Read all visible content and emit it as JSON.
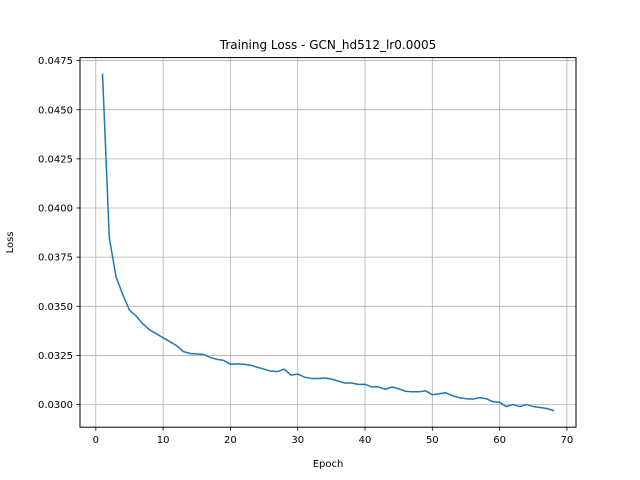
{
  "chart_data": {
    "type": "line",
    "title": "Training Loss - GCN_hd512_lr0.0005",
    "xlabel": "Epoch",
    "ylabel": "Loss",
    "xlim": [
      -2.35,
      71.35
    ],
    "ylim": [
      0.02885,
      0.04765
    ],
    "xticks": [
      0,
      10,
      20,
      30,
      40,
      50,
      60,
      70
    ],
    "xtick_labels": [
      "0",
      "10",
      "20",
      "30",
      "40",
      "50",
      "60",
      "70"
    ],
    "yticks": [
      0.03,
      0.0325,
      0.035,
      0.0375,
      0.04,
      0.0425,
      0.045,
      0.0475
    ],
    "ytick_labels": [
      "0.0300",
      "0.0325",
      "0.0350",
      "0.0375",
      "0.0400",
      "0.0425",
      "0.0450",
      "0.0475"
    ],
    "grid": true,
    "line_color": "#1f77b4",
    "series": [
      {
        "x": [
          1,
          2,
          3,
          4,
          5,
          6,
          7,
          8,
          9,
          10,
          11,
          12,
          13,
          14,
          15,
          16,
          17,
          18,
          19,
          20,
          21,
          22,
          23,
          24,
          25,
          26,
          27,
          28,
          29,
          30,
          31,
          32,
          33,
          34,
          35,
          36,
          37,
          38,
          39,
          40,
          41,
          42,
          43,
          44,
          45,
          46,
          47,
          48,
          49,
          50,
          51,
          52,
          53,
          54,
          55,
          56,
          57,
          58,
          59,
          60,
          61,
          62,
          63,
          64,
          65,
          66,
          67,
          68
        ],
        "values": [
          0.0468,
          0.0385,
          0.0365,
          0.0356,
          0.0348,
          0.0345,
          0.0341,
          0.0338,
          0.0336,
          0.0334,
          0.0332,
          0.033,
          0.0327,
          0.0326,
          0.03258,
          0.03255,
          0.0324,
          0.0323,
          0.03225,
          0.03205,
          0.03207,
          0.03205,
          0.032,
          0.0319,
          0.0318,
          0.0317,
          0.03168,
          0.0318,
          0.0315,
          0.03155,
          0.0314,
          0.03133,
          0.03133,
          0.03135,
          0.0313,
          0.0312,
          0.0311,
          0.0311,
          0.03103,
          0.03103,
          0.0309,
          0.0309,
          0.03078,
          0.0309,
          0.0308,
          0.03068,
          0.03065,
          0.03065,
          0.0307,
          0.0305,
          0.03055,
          0.0306,
          0.03045,
          0.03035,
          0.0303,
          0.03028,
          0.03035,
          0.0303,
          0.03015,
          0.03012,
          0.0299,
          0.03,
          0.0299,
          0.03,
          0.0299,
          0.02985,
          0.0298,
          0.0297
        ]
      }
    ]
  }
}
